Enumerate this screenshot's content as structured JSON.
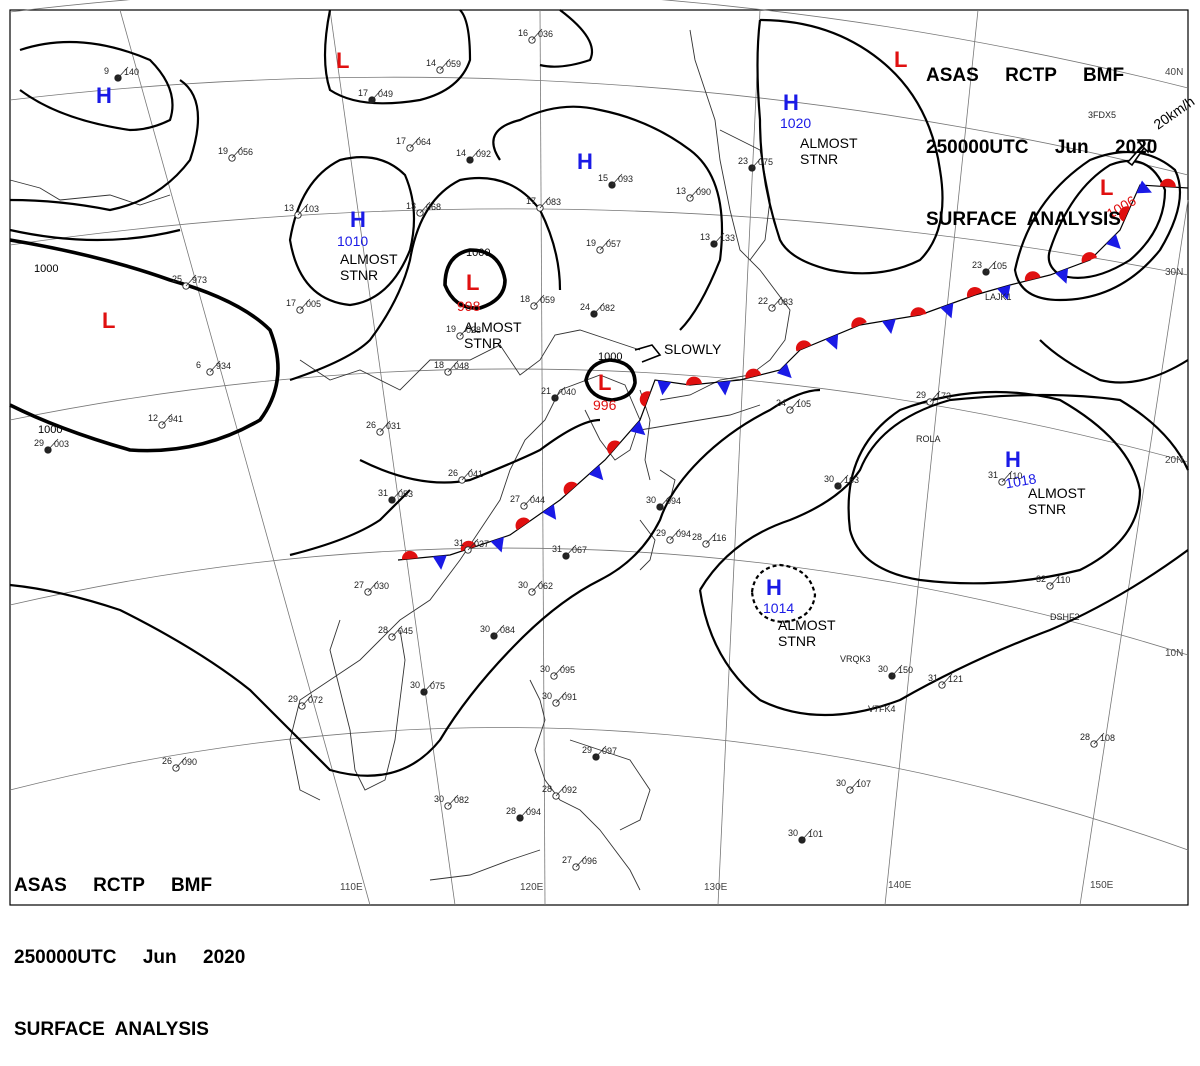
{
  "header": {
    "line1": "ASAS     RCTP     BMF",
    "line2": "250000UTC     Jun     2020",
    "line3": "SURFACE  ANALYSIS"
  },
  "longitude_labels": [
    "110E",
    "120E",
    "130E",
    "140E",
    "150E"
  ],
  "latitude_labels": [
    "40N",
    "30N",
    "20N",
    "10N"
  ],
  "pressure_centers": [
    {
      "id": "h-north-west",
      "type": "H",
      "pressure": ""
    },
    {
      "id": "l-north",
      "type": "L",
      "pressure": ""
    },
    {
      "id": "h-north-central",
      "type": "H",
      "pressure": ""
    },
    {
      "id": "h-north-east",
      "type": "H",
      "pressure": "1020",
      "status": "ALMOST\nSTNR"
    },
    {
      "id": "h-china-north",
      "type": "H",
      "pressure": "1010",
      "status": "ALMOST\nSTNR"
    },
    {
      "id": "l-china-west",
      "type": "L",
      "pressure": ""
    },
    {
      "id": "l-yellow-sea",
      "type": "L",
      "pressure": "998",
      "status": "ALMOST\nSTNR"
    },
    {
      "id": "l-korea",
      "type": "L",
      "pressure": "996",
      "motion": "SLOWLY"
    },
    {
      "id": "l-pacific-ne",
      "type": "L",
      "pressure": "1006",
      "motion": "20km/h"
    },
    {
      "id": "h-pacific-east",
      "type": "H",
      "pressure": "1018",
      "status": "ALMOST\nSTNR"
    },
    {
      "id": "h-pacific-south",
      "type": "H",
      "pressure": "1014",
      "status": "ALMOST\nSTNR"
    }
  ],
  "isobar_labels": [
    "1000",
    "1000",
    "1000",
    "1000"
  ],
  "colors": {
    "high": "#1a1ae6",
    "low": "#e01010",
    "front_cold": "#1a1ae6",
    "front_warm": "#e01010",
    "lines": "#000000"
  },
  "station_obs": [
    {
      "t": "9",
      "p": "140"
    },
    {
      "t": "16",
      "p": "036"
    },
    {
      "t": "14",
      "p": "059"
    },
    {
      "t": "17",
      "p": "049"
    },
    {
      "t": "17",
      "p": "064"
    },
    {
      "t": "19",
      "p": "056"
    },
    {
      "t": "14",
      "p": "092"
    },
    {
      "t": "13",
      "p": "103"
    },
    {
      "t": "13",
      "p": "068"
    },
    {
      "t": "15",
      "p": "093"
    },
    {
      "t": "17",
      "p": "083"
    },
    {
      "t": "19",
      "p": "057"
    },
    {
      "t": "13",
      "p": "133"
    },
    {
      "t": "13",
      "p": "090"
    },
    {
      "t": "18",
      "p": "059"
    },
    {
      "t": "24",
      "p": "082"
    },
    {
      "t": "19",
      "p": "028"
    },
    {
      "t": "18",
      "p": "048"
    },
    {
      "t": "21",
      "p": "040"
    },
    {
      "t": "6",
      "p": "934"
    },
    {
      "t": "12",
      "p": "941"
    },
    {
      "t": "29",
      "p": "003"
    },
    {
      "t": "26",
      "p": "031"
    },
    {
      "t": "26",
      "p": "041"
    },
    {
      "t": "31",
      "p": "053"
    },
    {
      "t": "27",
      "p": "044"
    },
    {
      "t": "31",
      "p": "037"
    },
    {
      "t": "31",
      "p": "067"
    },
    {
      "t": "29",
      "p": "094"
    },
    {
      "t": "28",
      "p": "116"
    },
    {
      "t": "30",
      "p": "094"
    },
    {
      "t": "27",
      "p": "030"
    },
    {
      "t": "28",
      "p": "045"
    },
    {
      "t": "30",
      "p": "084"
    },
    {
      "t": "30",
      "p": "062"
    },
    {
      "t": "29",
      "p": "072"
    },
    {
      "t": "30",
      "p": "075"
    },
    {
      "t": "30",
      "p": "095"
    },
    {
      "t": "30",
      "p": "091"
    },
    {
      "t": "29",
      "p": "097"
    },
    {
      "t": "28",
      "p": "092"
    },
    {
      "t": "30",
      "p": "082"
    },
    {
      "t": "28",
      "p": "094"
    },
    {
      "t": "27",
      "p": "096"
    },
    {
      "t": "26",
      "p": "090"
    },
    {
      "t": "30",
      "p": "101"
    },
    {
      "t": "30",
      "p": "107"
    },
    {
      "t": "28",
      "p": "108"
    },
    {
      "t": "30",
      "p": "150"
    },
    {
      "t": "31",
      "p": "121"
    },
    {
      "t": "32",
      "p": "110"
    },
    {
      "t": "30",
      "p": "163"
    },
    {
      "t": "29",
      "p": "173"
    },
    {
      "t": "31",
      "p": "110"
    },
    {
      "t": "23",
      "p": "105"
    },
    {
      "t": "22",
      "p": "083"
    },
    {
      "t": "24",
      "p": "105"
    },
    {
      "t": "23",
      "p": "075"
    },
    {
      "t": "25",
      "p": "973"
    },
    {
      "t": "17",
      "p": "005"
    }
  ],
  "ship_ids": [
    "3FDX5",
    "LAJK1",
    "ROLA",
    "DSHF2",
    "VRQK3",
    "V7FK4"
  ]
}
